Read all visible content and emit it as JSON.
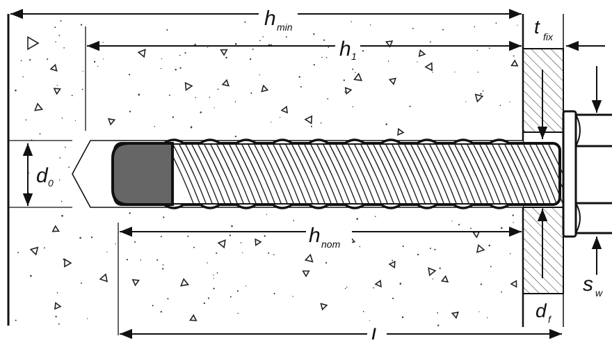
{
  "labels": {
    "h_min": {
      "main": "h",
      "sub": "min"
    },
    "h_1": {
      "main": "h",
      "sub": "1"
    },
    "t_fix": {
      "main": "t",
      "sub": "fix"
    },
    "d_0": {
      "main": "d",
      "sub": "0"
    },
    "h_nom": {
      "main": "h",
      "sub": "nom"
    },
    "s_w": {
      "main": "s",
      "sub": "w"
    },
    "d_f": {
      "main": "d",
      "sub": "f"
    },
    "L": {
      "main": "L",
      "sub": ""
    }
  },
  "colors": {
    "line": "#111111",
    "concrete_fill": "#ffffff",
    "bolt_tip": "#666666",
    "hatch": "#222222"
  }
}
